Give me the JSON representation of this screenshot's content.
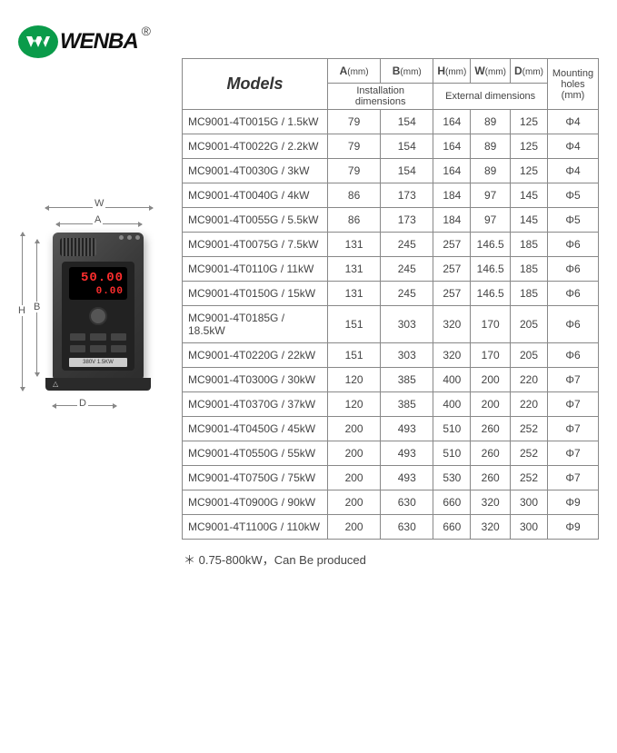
{
  "brand": {
    "name": "WENBA",
    "logo_color": "#0a9b4a",
    "trademark": "®"
  },
  "diagram": {
    "labels": {
      "W": "W",
      "A": "A",
      "H": "H",
      "B": "B",
      "D": "D"
    },
    "display": {
      "line1": "50.00",
      "line2": "0.00"
    },
    "plate": "380V 1.5KW"
  },
  "table": {
    "header_models": "Models",
    "cols": [
      {
        "key": "A",
        "unit": "(mm)"
      },
      {
        "key": "B",
        "unit": "(mm)"
      },
      {
        "key": "H",
        "unit": "(mm)"
      },
      {
        "key": "W",
        "unit": "(mm)"
      },
      {
        "key": "D",
        "unit": "(mm)"
      }
    ],
    "group1": "Installation dimensions",
    "group2": "External dimensions",
    "holes_header": "Mounting holes (mm)",
    "rows": [
      {
        "m": "MC9001-4T0015G / 1.5kW",
        "v": [
          "79",
          "154",
          "164",
          "89",
          "125",
          "Φ4"
        ]
      },
      {
        "m": "MC9001-4T0022G / 2.2kW",
        "v": [
          "79",
          "154",
          "164",
          "89",
          "125",
          "Φ4"
        ]
      },
      {
        "m": "MC9001-4T0030G / 3kW",
        "v": [
          "79",
          "154",
          "164",
          "89",
          "125",
          "Φ4"
        ]
      },
      {
        "m": "MC9001-4T0040G / 4kW",
        "v": [
          "86",
          "173",
          "184",
          "97",
          "145",
          "Φ5"
        ]
      },
      {
        "m": "MC9001-4T0055G / 5.5kW",
        "v": [
          "86",
          "173",
          "184",
          "97",
          "145",
          "Φ5"
        ]
      },
      {
        "m": "MC9001-4T0075G / 7.5kW",
        "v": [
          "131",
          "245",
          "257",
          "146.5",
          "185",
          "Φ6"
        ]
      },
      {
        "m": "MC9001-4T0110G / 11kW",
        "v": [
          "131",
          "245",
          "257",
          "146.5",
          "185",
          "Φ6"
        ]
      },
      {
        "m": "MC9001-4T0150G / 15kW",
        "v": [
          "131",
          "245",
          "257",
          "146.5",
          "185",
          "Φ6"
        ]
      },
      {
        "m": "MC9001-4T0185G / 18.5kW",
        "v": [
          "151",
          "303",
          "320",
          "170",
          "205",
          "Φ6"
        ]
      },
      {
        "m": "MC9001-4T0220G / 22kW",
        "v": [
          "151",
          "303",
          "320",
          "170",
          "205",
          "Φ6"
        ]
      },
      {
        "m": "MC9001-4T0300G / 30kW",
        "v": [
          "120",
          "385",
          "400",
          "200",
          "220",
          "Φ7"
        ]
      },
      {
        "m": "MC9001-4T0370G / 37kW",
        "v": [
          "120",
          "385",
          "400",
          "200",
          "220",
          "Φ7"
        ]
      },
      {
        "m": "MC9001-4T0450G / 45kW",
        "v": [
          "200",
          "493",
          "510",
          "260",
          "252",
          "Φ7"
        ]
      },
      {
        "m": "MC9001-4T0550G / 55kW",
        "v": [
          "200",
          "493",
          "510",
          "260",
          "252",
          "Φ7"
        ]
      },
      {
        "m": "MC9001-4T0750G / 75kW",
        "v": [
          "200",
          "493",
          "530",
          "260",
          "252",
          "Φ7"
        ]
      },
      {
        "m": "MC9001-4T0900G / 90kW",
        "v": [
          "200",
          "630",
          "660",
          "320",
          "300",
          "Φ9"
        ]
      },
      {
        "m": "MC9001-4T1100G / 110kW",
        "v": [
          "200",
          "630",
          "660",
          "320",
          "300",
          "Φ9"
        ]
      }
    ]
  },
  "footnote": "＊ 0.75-800kW，Can Be produced",
  "colors": {
    "border": "#888",
    "text": "#444",
    "accent": "#0a9b4a"
  }
}
